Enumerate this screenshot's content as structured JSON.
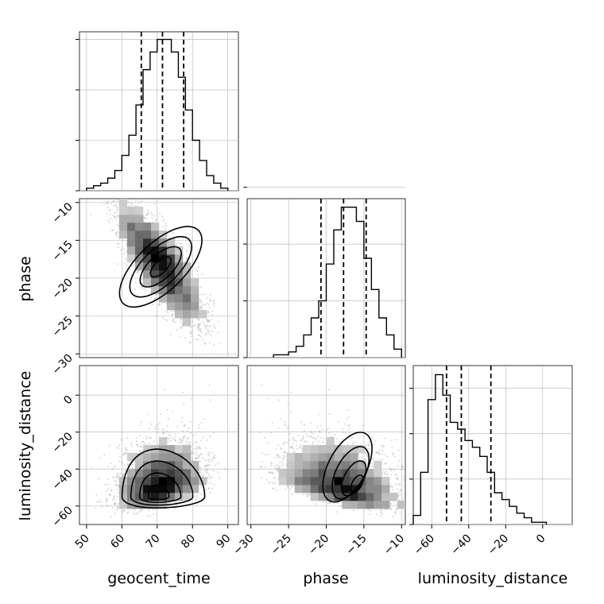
{
  "chart_data": {
    "type": "corner",
    "parameters": [
      "geocent_time",
      "phase",
      "luminosity_distance"
    ],
    "axis_labels": {
      "x": [
        "geocent_time",
        "phase",
        "luminosity_distance"
      ],
      "y": [
        "phase",
        "luminosity_distance"
      ]
    },
    "ranges": {
      "geocent_time": [
        48,
        93
      ],
      "phase": [
        -30.5,
        -9.5
      ],
      "luminosity_distance": [
        -70,
        16
      ]
    },
    "ticks": {
      "geocent_time": [
        50,
        60,
        70,
        80,
        90
      ],
      "phase": [
        -30,
        -25,
        -20,
        -15,
        -10
      ],
      "luminosity_distance_x": [
        -60,
        -40,
        -20,
        0
      ],
      "luminosity_distance_y": [
        -60,
        -40,
        -20,
        0
      ]
    },
    "tick_labels": {
      "geocent_time": [
        "50",
        "60",
        "70",
        "80",
        "90"
      ],
      "phase": [
        "−30",
        "−25",
        "−20",
        "−15",
        "−10"
      ],
      "luminosity_distance_x": [
        "−60",
        "−40",
        "−20",
        "0"
      ],
      "luminosity_distance_y": [
        "−60",
        "−40",
        "−20",
        "0"
      ]
    },
    "histograms": {
      "geocent_time": {
        "edges": [
          50,
          52,
          54,
          56,
          58,
          60,
          62,
          64,
          66,
          68,
          70,
          72,
          74,
          76,
          78,
          80,
          82,
          84,
          86,
          88,
          90
        ],
        "counts": [
          1,
          2,
          3,
          5,
          8,
          14,
          22,
          34,
          48,
          55,
          60,
          60,
          55,
          45,
          32,
          20,
          12,
          6,
          3,
          1
        ]
      },
      "phase": {
        "edges": [
          -27,
          -26,
          -25,
          -24,
          -23,
          -22,
          -21,
          -20,
          -19,
          -18,
          -17,
          -16,
          -15,
          -14,
          -13,
          -12,
          -11,
          -10
        ],
        "counts": [
          1,
          1,
          2,
          4,
          8,
          14,
          20,
          33,
          45,
          53,
          53,
          48,
          35,
          24,
          14,
          8,
          3
        ]
      },
      "luminosity_distance": {
        "edges": [
          -70,
          -66,
          -62,
          -58,
          -54,
          -50,
          -46,
          -42,
          -38,
          -34,
          -30,
          -26,
          -22,
          -18,
          -14,
          -10,
          -6,
          -2,
          2
        ],
        "counts": [
          4,
          23,
          55,
          66,
          57,
          45,
          42,
          37,
          34,
          30,
          23,
          14,
          11,
          8,
          5,
          3,
          1,
          1
        ]
      }
    },
    "quantiles": {
      "geocent_time": [
        65.5,
        71.5,
        77.5
      ],
      "phase": [
        -20.7,
        -17.7,
        -14.7
      ],
      "luminosity_distance": [
        -52,
        -44,
        -28
      ]
    },
    "hist_grid": {
      "geocent_time": [
        0,
        20,
        40,
        60
      ],
      "phase": [
        0,
        20,
        40,
        60
      ],
      "luminosity_distance": [
        0,
        20,
        40,
        60
      ]
    },
    "hist_ymax": {
      "geocent_time": 63,
      "phase": 56,
      "luminosity_distance": 70
    },
    "contour_levels_sigma": [
      0.5,
      1.0,
      1.5,
      2.0
    ],
    "joint_distributions": [
      {
        "x": "geocent_time",
        "y": "phase",
        "peak": [
          71,
          -18.5
        ],
        "shape": "elongated ellipse, negative correlation",
        "major_axis_angle_deg": -44,
        "sigma_major": 9.5,
        "sigma_minor": 2.6
      },
      {
        "x": "geocent_time",
        "y": "luminosity_distance",
        "peak": [
          70,
          -55
        ],
        "shape": "skewed blob, tight floor near -55, tail extending up to about -15"
      },
      {
        "x": "phase",
        "y": "luminosity_distance",
        "peak": [
          -15.5,
          -51
        ],
        "shape": "banana shaped, extending from (-18, -25) down to (-13, -55)"
      }
    ],
    "colors": {
      "hist_line": "#000000",
      "contour_line": "#000000",
      "grid": "#b0b0b0",
      "sample_points": "#9a9a9a",
      "density_fill": "#000000"
    }
  }
}
